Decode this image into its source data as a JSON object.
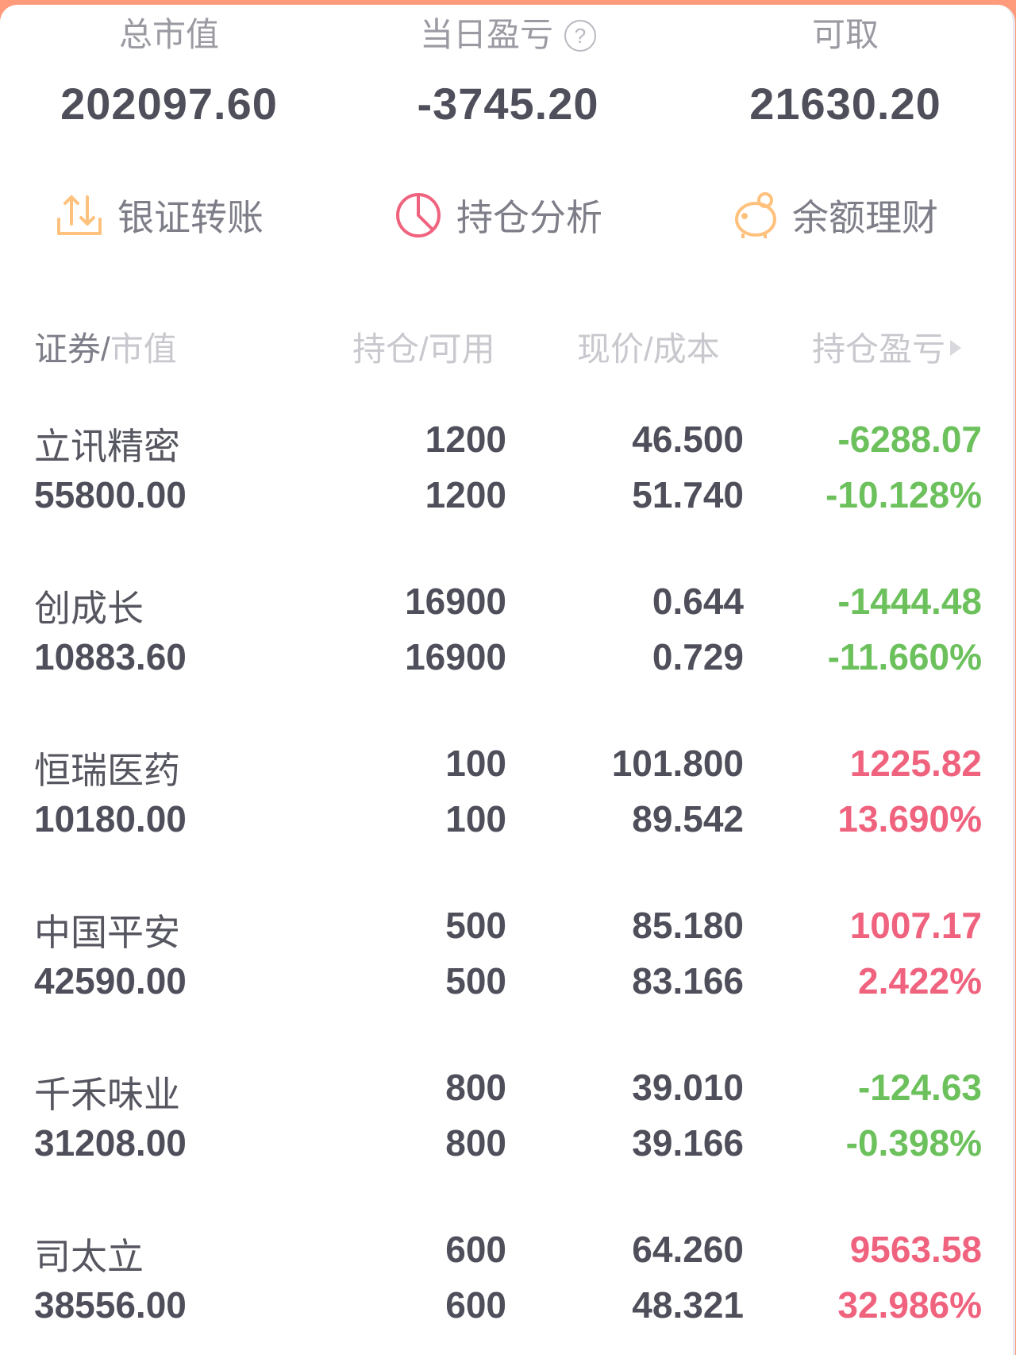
{
  "summary": [
    {
      "label": "总市值",
      "value": "202097.60",
      "color": "neutral"
    },
    {
      "label": "当日盈亏",
      "value": "-3745.20",
      "color": "green",
      "help_icon": "question-circle-icon"
    },
    {
      "label": "可取",
      "value": "21630.20",
      "color": "neutral"
    }
  ],
  "actions": [
    {
      "label": "银证转账",
      "icon": "transfer-icon"
    },
    {
      "label": "持仓分析",
      "icon": "pie-chart-icon"
    },
    {
      "label": "余额理财",
      "icon": "piggy-bank-icon"
    }
  ],
  "columns": {
    "security": "证券",
    "slash": "/",
    "market_value": "市值",
    "position": "持仓/可用",
    "price": "现价/成本",
    "pl": "持仓盈亏"
  },
  "colors": {
    "up": "#f0637e",
    "down": "#6cc15c",
    "accent": "#ff9a7a"
  },
  "holdings": [
    {
      "name": "立讯精密",
      "market_value": "55800.00",
      "position": "1200",
      "available": "1200",
      "price": "46.500",
      "cost": "51.740",
      "pl": "-6288.07",
      "pl_pct": "-10.128%",
      "trend": "down"
    },
    {
      "name": "创成长",
      "market_value": "10883.60",
      "position": "16900",
      "available": "16900",
      "price": "0.644",
      "cost": "0.729",
      "pl": "-1444.48",
      "pl_pct": "-11.660%",
      "trend": "down"
    },
    {
      "name": "恒瑞医药",
      "market_value": "10180.00",
      "position": "100",
      "available": "100",
      "price": "101.800",
      "cost": "89.542",
      "pl": "1225.82",
      "pl_pct": "13.690%",
      "trend": "up"
    },
    {
      "name": "中国平安",
      "market_value": "42590.00",
      "position": "500",
      "available": "500",
      "price": "85.180",
      "cost": "83.166",
      "pl": "1007.17",
      "pl_pct": "2.422%",
      "trend": "up"
    },
    {
      "name": "千禾味业",
      "market_value": "31208.00",
      "position": "800",
      "available": "800",
      "price": "39.010",
      "cost": "39.166",
      "pl": "-124.63",
      "pl_pct": "-0.398%",
      "trend": "down"
    },
    {
      "name": "司太立",
      "market_value": "38556.00",
      "position": "600",
      "available": "600",
      "price": "64.260",
      "cost": "48.321",
      "pl": "9563.58",
      "pl_pct": "32.986%",
      "trend": "up"
    }
  ]
}
